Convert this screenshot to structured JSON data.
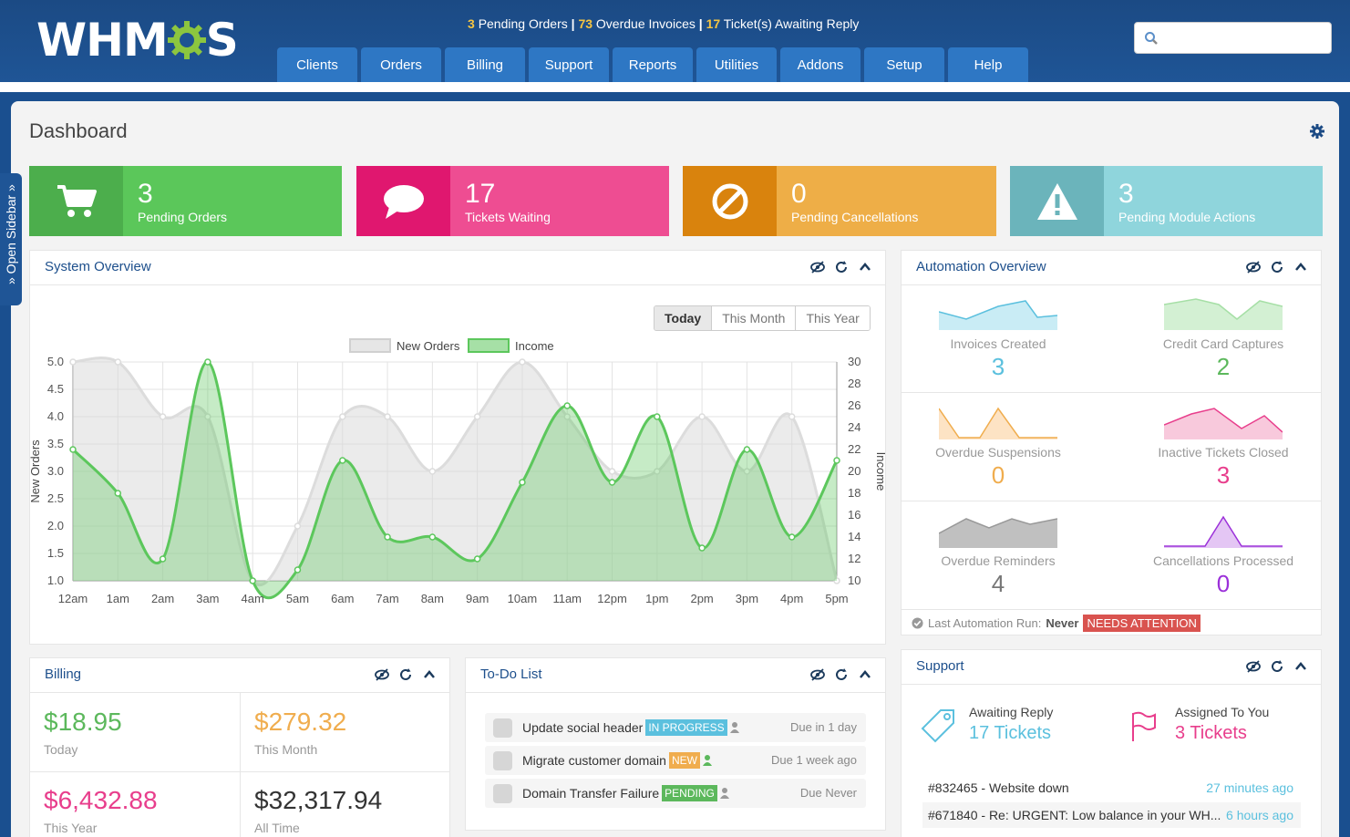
{
  "header": {
    "logo_prefix": "WHM",
    "logo_suffix": "S",
    "alerts": {
      "pending_orders_count": "3",
      "pending_orders_label": "Pending Orders",
      "overdue_invoices_count": "73",
      "overdue_invoices_label": "Overdue Invoices",
      "tickets_count": "17",
      "tickets_label": "Ticket(s) Awaiting Reply",
      "separator": "|"
    },
    "nav": [
      "Clients",
      "Orders",
      "Billing",
      "Support",
      "Reports",
      "Utilities",
      "Addons",
      "Setup",
      "Help"
    ],
    "search_placeholder": ""
  },
  "sidebar_toggle": "» Open Sidebar »",
  "page_title": "Dashboard",
  "tiles": [
    {
      "value": "3",
      "label": "Pending Orders",
      "icon": "cart-icon",
      "color": "#5bc75a",
      "icon_bg": "#4cae4c"
    },
    {
      "value": "17",
      "label": "Tickets Waiting",
      "icon": "comment-icon",
      "color": "#ee4d92",
      "icon_bg": "#e0176f"
    },
    {
      "value": "0",
      "label": "Pending Cancellations",
      "icon": "ban-icon",
      "color": "#eeae47",
      "icon_bg": "#d9830d"
    },
    {
      "value": "3",
      "label": "Pending Module Actions",
      "icon": "warning-icon",
      "color": "#8fd5dc",
      "icon_bg": "#6bb4bb"
    }
  ],
  "system_overview": {
    "title": "System Overview",
    "ranges": [
      "Today",
      "This Month",
      "This Year"
    ],
    "selected_range": "Today"
  },
  "chart_data": {
    "type": "line",
    "x": [
      "12am",
      "1am",
      "2am",
      "3am",
      "4am",
      "5am",
      "6am",
      "7am",
      "8am",
      "9am",
      "10am",
      "11am",
      "12pm",
      "1pm",
      "2pm",
      "3pm",
      "4pm",
      "5pm"
    ],
    "series": [
      {
        "name": "New Orders",
        "axis": "left",
        "values": [
          5.0,
          5.0,
          4.0,
          4.0,
          1.0,
          2.0,
          4.0,
          4.0,
          3.0,
          4.0,
          5.0,
          4.0,
          3.0,
          3.0,
          4.0,
          3.0,
          4.0,
          1.0
        ],
        "color": "#d9d9d9"
      },
      {
        "name": "Income",
        "axis": "right",
        "values": [
          22,
          18,
          12,
          30,
          10,
          11,
          21,
          14,
          14,
          12,
          19,
          26,
          19,
          25,
          13,
          22,
          14,
          21
        ],
        "color": "#5cc75c"
      }
    ],
    "ylabel": "New Orders",
    "y2label": "Income",
    "ylim": [
      1.0,
      5.0
    ],
    "y2lim": [
      10,
      30
    ],
    "yticks": [
      "5.0",
      "4.5",
      "4.0",
      "3.5",
      "3.0",
      "2.5",
      "2.0",
      "1.5",
      "1.0"
    ],
    "y2ticks": [
      "30",
      "28",
      "26",
      "24",
      "22",
      "20",
      "18",
      "16",
      "14",
      "12",
      "10"
    ],
    "legend": "top-center",
    "grid": true
  },
  "automation": {
    "title": "Automation Overview",
    "items": [
      {
        "label": "Invoices Created",
        "value": "3",
        "color": "#5bc0de"
      },
      {
        "label": "Credit Card Captures",
        "value": "2",
        "color": "#5cb85c"
      },
      {
        "label": "Overdue Suspensions",
        "value": "0",
        "color": "#f0ad4e"
      },
      {
        "label": "Inactive Tickets Closed",
        "value": "3",
        "color": "#e83e8c"
      },
      {
        "label": "Overdue Reminders",
        "value": "4",
        "color": "#777777"
      },
      {
        "label": "Cancellations Processed",
        "value": "0",
        "color": "#9b30d9"
      }
    ],
    "last_run_label": "Last Automation Run:",
    "last_run_value": "Never",
    "attention": "NEEDS ATTENTION"
  },
  "billing": {
    "title": "Billing",
    "cells": [
      {
        "amount": "$18.95",
        "label": "Today",
        "color": "#5cb85c"
      },
      {
        "amount": "$279.32",
        "label": "This Month",
        "color": "#f0ad4e"
      },
      {
        "amount": "$6,432.88",
        "label": "This Year",
        "color": "#e83e8c"
      },
      {
        "amount": "$32,317.94",
        "label": "All Time",
        "color": "#333333"
      }
    ]
  },
  "todo": {
    "title": "To-Do List",
    "items": [
      {
        "text": "Update social header",
        "badge": "IN PROGRESS",
        "badge_color": "#5bc0de",
        "user_color": "#999999",
        "due": "Due in 1 day"
      },
      {
        "text": "Migrate customer domain",
        "badge": "NEW",
        "badge_color": "#f0ad4e",
        "user_color": "#5cb85c",
        "due": "Due 1 week ago"
      },
      {
        "text": "Domain Transfer Failure",
        "badge": "PENDING",
        "badge_color": "#5cb85c",
        "user_color": "#999999",
        "due": "Due Never"
      }
    ]
  },
  "support": {
    "title": "Support",
    "awaiting_label": "Awaiting Reply",
    "awaiting_count": "17 Tickets",
    "assigned_label": "Assigned To You",
    "assigned_count": "3 Tickets",
    "tickets": [
      {
        "title": "#832465 - Website down",
        "time": "27 minutes ago"
      },
      {
        "title": "#671840 - Re: URGENT: Low balance in your WH...",
        "time": "6 hours ago"
      }
    ]
  }
}
